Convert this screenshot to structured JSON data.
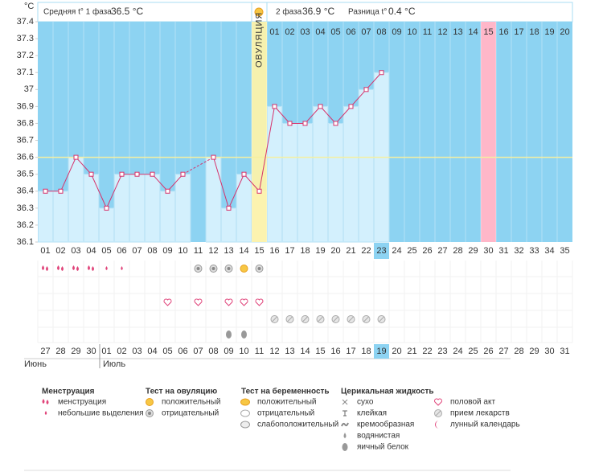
{
  "header": {
    "phase1_label": "Средняя t° 1 фаза",
    "phase1_value": "36.5 °C",
    "phase2_label": "2 фаза",
    "phase2_value": "36.9 °C",
    "diff_label": "Разница t°",
    "diff_value": "0.4 °C"
  },
  "chart_data": {
    "type": "line",
    "y_unit": "°C",
    "categories": [
      "01",
      "02",
      "03",
      "04",
      "05",
      "06",
      "07",
      "08",
      "09",
      "10",
      "11",
      "12",
      "13",
      "14",
      "15",
      "16",
      "17",
      "18",
      "19",
      "20",
      "21",
      "22",
      "23",
      "24",
      "25",
      "26",
      "27",
      "28",
      "29",
      "30",
      "31",
      "32",
      "33",
      "34",
      "35"
    ],
    "values": [
      36.4,
      36.4,
      36.6,
      36.5,
      36.3,
      36.5,
      36.5,
      36.5,
      36.4,
      36.5,
      null,
      36.6,
      36.3,
      36.5,
      36.4,
      36.9,
      36.8,
      36.8,
      36.9,
      36.8,
      36.9,
      37.0,
      37.1,
      null,
      null,
      null,
      null,
      null,
      null,
      null,
      null,
      null,
      null,
      null,
      null
    ],
    "color": "#d6336c",
    "ylim": [
      36.1,
      37.4
    ],
    "yticks": [
      36.1,
      36.2,
      36.3,
      36.4,
      36.5,
      36.6,
      36.7,
      36.8,
      36.9,
      37,
      37.1,
      37.2,
      37.3,
      37.4
    ],
    "coverline": 36.6,
    "ovulation_day": 15,
    "ovulation_label": "ОВУЛЯЦИЯ",
    "marked_day": 30,
    "today": 23,
    "luteal_days": [
      "01",
      "02",
      "03",
      "04",
      "05",
      "06",
      "07",
      "08",
      "09",
      "10",
      "11",
      "12",
      "13",
      "14",
      "15",
      "16",
      "17",
      "18",
      "19",
      "20"
    ],
    "dates": [
      "27",
      "28",
      "29",
      "30",
      "01",
      "02",
      "03",
      "04",
      "05",
      "06",
      "07",
      "08",
      "09",
      "10",
      "11",
      "12",
      "13",
      "14",
      "15",
      "16",
      "17",
      "18",
      "19",
      "20",
      "21",
      "22",
      "23",
      "24",
      "25",
      "26",
      "27",
      "28",
      "29",
      "30",
      "31"
    ],
    "weekend_days": [
      3,
      4,
      10,
      11,
      17,
      18,
      24,
      25,
      31,
      32
    ],
    "months": [
      {
        "label": "Июнь",
        "day": 1
      },
      {
        "label": "Июль",
        "day": 5
      }
    ]
  },
  "legend": {
    "groups": [
      {
        "title": "Менструация",
        "items": [
          {
            "label": "менструация",
            "days": [
              1,
              2,
              3,
              4
            ]
          },
          {
            "label": "небольшие выделения",
            "days": [
              5,
              6
            ]
          }
        ]
      },
      {
        "title": "Тест на овуляцию",
        "items": [
          {
            "label": "положительный",
            "days": [
              14
            ]
          },
          {
            "label": "отрицательный",
            "days": [
              11,
              12,
              13,
              15
            ]
          }
        ]
      },
      {
        "title": "Тест на беременность",
        "items": [
          {
            "label": "положительный",
            "days": []
          },
          {
            "label": "отрицательный",
            "days": []
          },
          {
            "label": "слабоположительный",
            "days": []
          }
        ]
      },
      {
        "title": "Церикальная жидкость",
        "items": [
          {
            "label": "сухо",
            "days": []
          },
          {
            "label": "клейкая",
            "days": []
          },
          {
            "label": "кремообразная",
            "days": []
          },
          {
            "label": "водянистая",
            "days": []
          },
          {
            "label": "яичный белок",
            "days": [
              13,
              14
            ]
          }
        ]
      },
      {
        "items": [
          {
            "label": "половой акт",
            "days": [
              9,
              11,
              13,
              14,
              15
            ]
          },
          {
            "label": "прием лекарств",
            "days": [
              16,
              17,
              18,
              19,
              20,
              21,
              22,
              23
            ]
          },
          {
            "label": "лунный календарь",
            "days": []
          }
        ]
      }
    ]
  }
}
